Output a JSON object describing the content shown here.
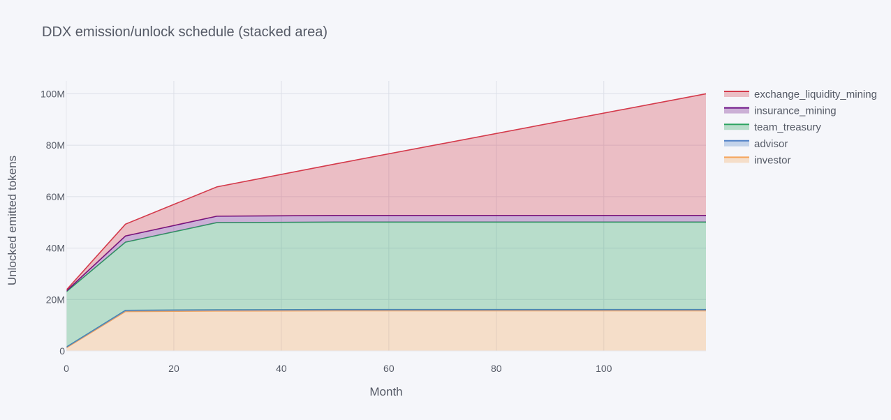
{
  "chart_data": {
    "type": "area",
    "stacked": true,
    "title": "DDX emission/unlock schedule (stacked area)",
    "xlabel": "Month",
    "ylabel": "Unlocked emitted tokens",
    "xlim": [
      0,
      119
    ],
    "ylim": [
      0,
      105000000
    ],
    "x_ticks": [
      0,
      20,
      40,
      60,
      80,
      100
    ],
    "x_tick_labels": [
      "0",
      "20",
      "40",
      "60",
      "80",
      "100"
    ],
    "y_ticks": [
      0,
      20000000,
      40000000,
      60000000,
      80000000,
      100000000
    ],
    "y_tick_labels": [
      "0",
      "20M",
      "40M",
      "60M",
      "80M",
      "100M"
    ],
    "grid": true,
    "legend_position": "top-right",
    "x": [
      0,
      11,
      28,
      50,
      119
    ],
    "series": [
      {
        "name": "investor",
        "color": "#f5a45a",
        "values": [
          1200000,
          15300000,
          15500000,
          15600000,
          15600000
        ]
      },
      {
        "name": "advisor",
        "color": "#4f80c6",
        "values": [
          300000,
          500000,
          500000,
          500000,
          500000
        ]
      },
      {
        "name": "team_treasury",
        "color": "#2ca361",
        "values": [
          21500000,
          26500000,
          33900000,
          34000000,
          34000000
        ]
      },
      {
        "name": "insurance_mining",
        "color": "#6a0d83",
        "values": [
          300000,
          2400000,
          2500000,
          2600000,
          2600000
        ]
      },
      {
        "name": "exchange_liquidity_mining",
        "color": "#d43a4b",
        "values": [
          400000,
          4600000,
          11400000,
          20000000,
          47300000
        ]
      }
    ]
  }
}
